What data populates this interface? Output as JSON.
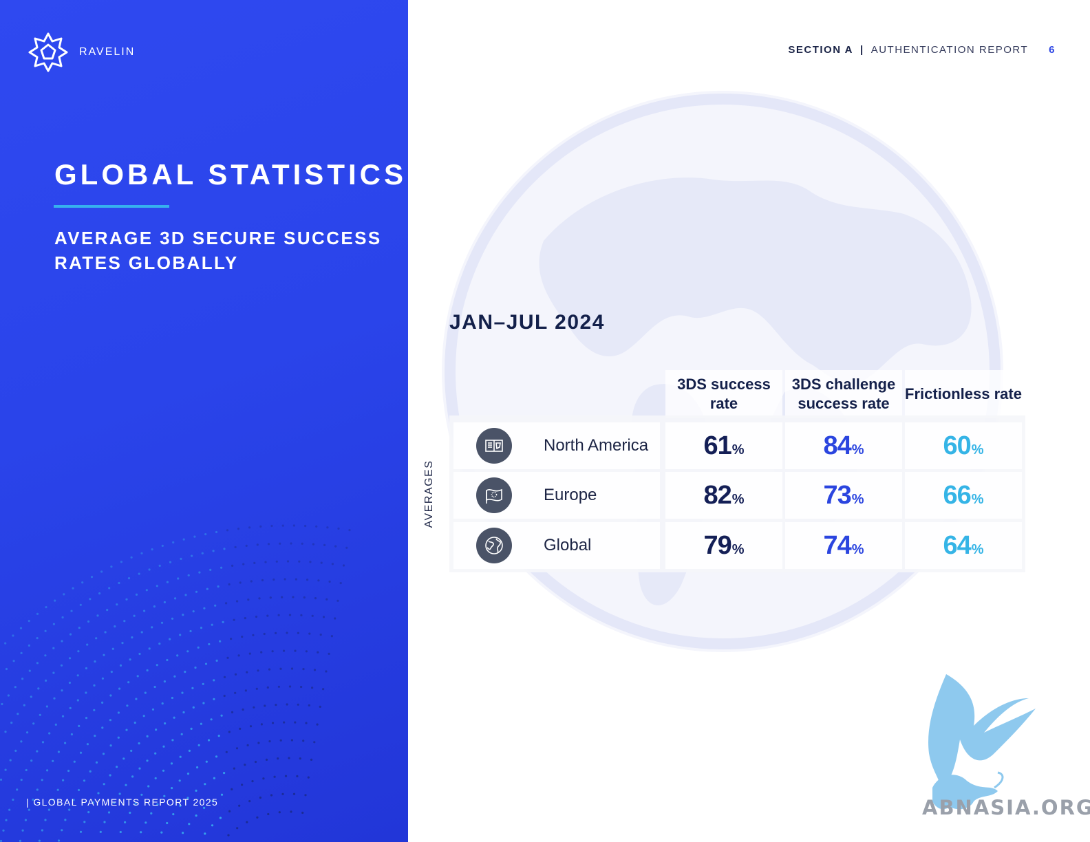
{
  "brand": {
    "name": "RAVELIN"
  },
  "left": {
    "title": "GLOBAL STATISTICS",
    "subtitle": "AVERAGE 3D SECURE SUCCESS RATES GLOBALLY",
    "footer": "| GLOBAL PAYMENTS REPORT 2025"
  },
  "header": {
    "section": "SECTION A",
    "separator": "|",
    "report": "AUTHENTICATION REPORT",
    "page": "6"
  },
  "period": "JAN–JUL 2024",
  "averages_label": "AVERAGES",
  "columns": [
    "3DS success rate",
    "3DS challenge success rate",
    "Frictionless rate"
  ],
  "rows": [
    {
      "region": "North America",
      "icon": "north-america-map-icon",
      "values": [
        "61",
        "84",
        "60"
      ],
      "unit": "%"
    },
    {
      "region": "Europe",
      "icon": "eu-flag-icon",
      "values": [
        "82",
        "73",
        "66"
      ],
      "unit": "%"
    },
    {
      "region": "Global",
      "icon": "globe-icon",
      "values": [
        "79",
        "74",
        "64"
      ],
      "unit": "%"
    }
  ],
  "watermark": {
    "text": "ABNASIA.ORG"
  },
  "colors": {
    "panel_blue": "#2a44ea",
    "accent_line": "#36b1ee",
    "value_dark": "#141f56",
    "value_blue": "#2b45df",
    "value_cyan": "#35b4e6"
  }
}
